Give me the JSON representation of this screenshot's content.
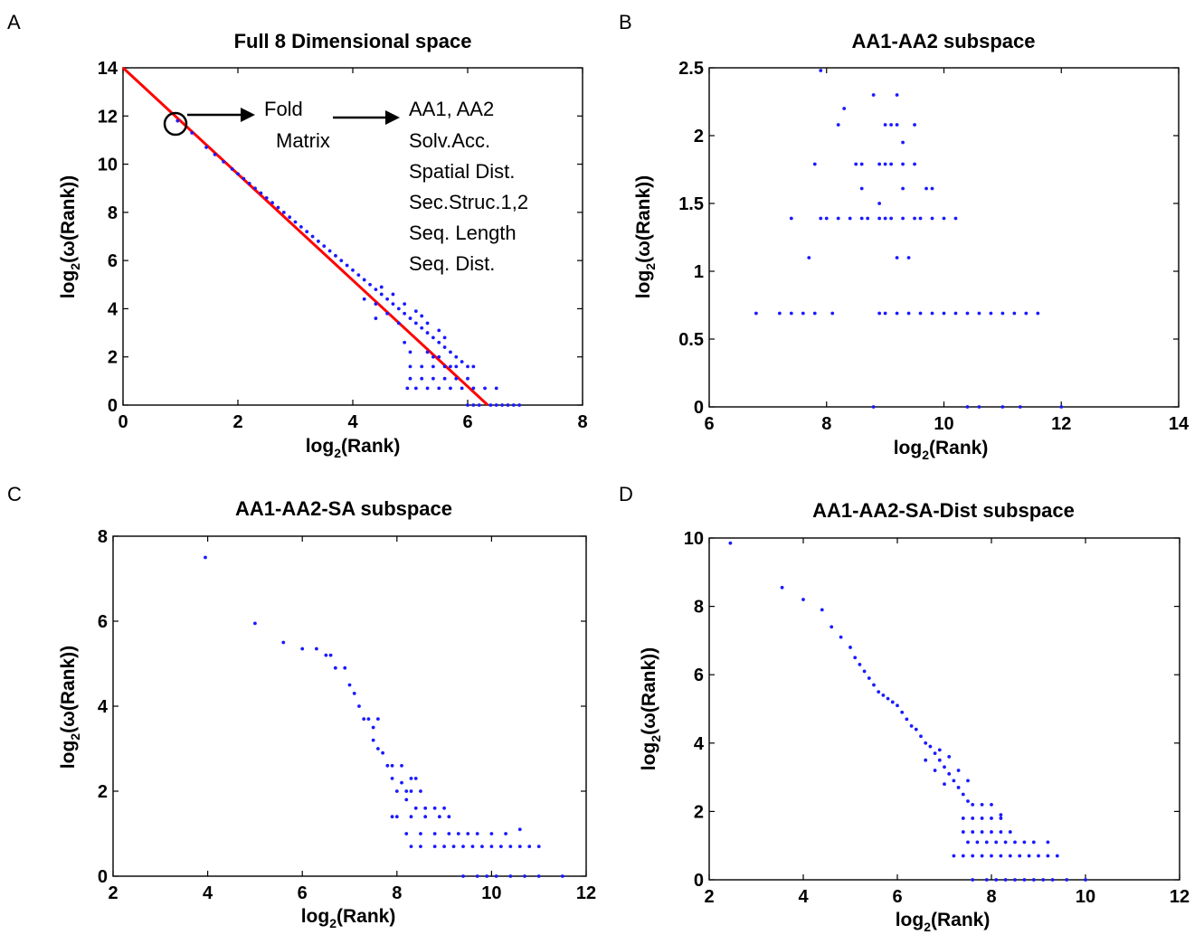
{
  "chart_data": [
    {
      "panel": "A",
      "type": "scatter",
      "title": "Full 8 Dimensional space",
      "xlabel": "log2(Rank)",
      "ylabel": "log2(ω(Rank))",
      "xlim": [
        0,
        8
      ],
      "ylim": [
        0,
        14
      ],
      "xticks": [
        0,
        2,
        4,
        6,
        8
      ],
      "yticks": [
        0,
        2,
        4,
        6,
        8,
        10,
        12,
        14
      ],
      "color": "#1a1aff",
      "fit_line": {
        "color": "#ff0000",
        "x": [
          0,
          6.35
        ],
        "y": [
          14,
          0
        ]
      },
      "annotation": {
        "box1": [
          "Fold",
          "Matrix"
        ],
        "box2": [
          "AA1, AA2",
          "Solv.Acc.",
          "Spatial Dist.",
          "Sec.Struc.1,2",
          "Seq. Length",
          "Seq. Dist."
        ],
        "circled_point": {
          "x": 0.9,
          "y": 11.8
        }
      },
      "points": [
        [
          0.95,
          11.8
        ],
        [
          1.2,
          11.3
        ],
        [
          1.45,
          10.7
        ],
        [
          1.6,
          10.4
        ],
        [
          1.75,
          10.1
        ],
        [
          1.9,
          9.8
        ],
        [
          2.0,
          9.6
        ],
        [
          2.1,
          9.4
        ],
        [
          2.2,
          9.2
        ],
        [
          2.3,
          9.0
        ],
        [
          2.4,
          8.8
        ],
        [
          2.5,
          8.6
        ],
        [
          2.6,
          8.4
        ],
        [
          2.7,
          8.2
        ],
        [
          2.8,
          8.0
        ],
        [
          2.9,
          7.8
        ],
        [
          3.0,
          7.6
        ],
        [
          3.1,
          7.4
        ],
        [
          3.2,
          7.2
        ],
        [
          3.3,
          7.0
        ],
        [
          3.4,
          6.8
        ],
        [
          3.5,
          6.6
        ],
        [
          3.6,
          6.4
        ],
        [
          3.7,
          6.2
        ],
        [
          3.8,
          6.0
        ],
        [
          3.9,
          5.8
        ],
        [
          4.0,
          5.6
        ],
        [
          4.1,
          5.4
        ],
        [
          4.2,
          5.2
        ],
        [
          4.3,
          5.0
        ],
        [
          4.4,
          4.8
        ],
        [
          4.5,
          4.6
        ],
        [
          4.6,
          4.4
        ],
        [
          4.7,
          4.2
        ],
        [
          4.8,
          4.0
        ],
        [
          4.9,
          3.8
        ],
        [
          5.0,
          3.6
        ],
        [
          5.1,
          3.4
        ],
        [
          5.2,
          3.2
        ],
        [
          5.3,
          3.0
        ],
        [
          5.4,
          2.8
        ],
        [
          5.5,
          2.6
        ],
        [
          5.6,
          2.4
        ],
        [
          5.7,
          2.2
        ],
        [
          5.8,
          2.0
        ],
        [
          5.9,
          1.8
        ],
        [
          4.5,
          4.9
        ],
        [
          4.7,
          4.6
        ],
        [
          4.9,
          4.2
        ],
        [
          5.1,
          3.9
        ],
        [
          5.2,
          3.7
        ],
        [
          5.3,
          3.4
        ],
        [
          5.5,
          3.1
        ],
        [
          5.6,
          2.8
        ],
        [
          5.3,
          2.2
        ],
        [
          5.4,
          2.0
        ],
        [
          5.5,
          2.0
        ],
        [
          5.6,
          1.6
        ],
        [
          5.7,
          1.6
        ],
        [
          5.8,
          1.6
        ],
        [
          6.0,
          1.6
        ],
        [
          6.1,
          1.6
        ],
        [
          5.0,
          1.6
        ],
        [
          5.2,
          1.6
        ],
        [
          5.4,
          1.6
        ],
        [
          5.2,
          1.1
        ],
        [
          5.4,
          1.1
        ],
        [
          5.6,
          1.1
        ],
        [
          5.8,
          1.1
        ],
        [
          6.0,
          1.1
        ],
        [
          5.1,
          0.7
        ],
        [
          5.3,
          0.7
        ],
        [
          5.5,
          0.7
        ],
        [
          5.7,
          0.7
        ],
        [
          5.9,
          0.7
        ],
        [
          6.1,
          0.7
        ],
        [
          6.3,
          0.7
        ],
        [
          6.5,
          0.7
        ],
        [
          4.95,
          0.7
        ],
        [
          5.0,
          1.1
        ],
        [
          5.0,
          2.2
        ],
        [
          4.9,
          2.6
        ],
        [
          6.4,
          0
        ],
        [
          6.5,
          0
        ],
        [
          6.6,
          0
        ],
        [
          6.7,
          0
        ],
        [
          6.8,
          0
        ],
        [
          6.9,
          0
        ],
        [
          6.0,
          0
        ],
        [
          6.1,
          0
        ],
        [
          6.2,
          0
        ],
        [
          4.4,
          4.2
        ],
        [
          4.6,
          3.8
        ],
        [
          4.8,
          3.4
        ],
        [
          4.4,
          3.6
        ],
        [
          4.2,
          4.4
        ]
      ]
    },
    {
      "panel": "B",
      "type": "scatter",
      "title": "AA1-AA2 subspace",
      "xlabel": "log2(Rank)",
      "ylabel": "log2(ω(Rank))",
      "xlim": [
        6,
        14
      ],
      "ylim": [
        0,
        2.5
      ],
      "xticks": [
        6,
        8,
        10,
        12,
        14
      ],
      "yticks": [
        0,
        0.5,
        1,
        1.5,
        2,
        2.5
      ],
      "color": "#1a1aff",
      "points": [
        [
          7.9,
          2.48
        ],
        [
          8.3,
          2.2
        ],
        [
          8.8,
          2.3
        ],
        [
          9.2,
          2.3
        ],
        [
          8.2,
          2.08
        ],
        [
          9.0,
          2.08
        ],
        [
          9.1,
          2.08
        ],
        [
          9.2,
          2.08
        ],
        [
          9.5,
          2.08
        ],
        [
          9.3,
          1.95
        ],
        [
          7.8,
          1.79
        ],
        [
          8.5,
          1.79
        ],
        [
          8.6,
          1.79
        ],
        [
          8.9,
          1.79
        ],
        [
          9.0,
          1.79
        ],
        [
          9.1,
          1.79
        ],
        [
          9.3,
          1.79
        ],
        [
          9.5,
          1.79
        ],
        [
          8.6,
          1.61
        ],
        [
          9.3,
          1.61
        ],
        [
          9.7,
          1.61
        ],
        [
          9.8,
          1.61
        ],
        [
          8.9,
          1.5
        ],
        [
          7.4,
          1.39
        ],
        [
          7.9,
          1.39
        ],
        [
          8.0,
          1.39
        ],
        [
          8.2,
          1.39
        ],
        [
          8.4,
          1.39
        ],
        [
          8.6,
          1.39
        ],
        [
          8.7,
          1.39
        ],
        [
          8.9,
          1.39
        ],
        [
          9.0,
          1.39
        ],
        [
          9.1,
          1.39
        ],
        [
          9.3,
          1.39
        ],
        [
          9.5,
          1.39
        ],
        [
          9.6,
          1.39
        ],
        [
          9.8,
          1.39
        ],
        [
          10.0,
          1.39
        ],
        [
          10.2,
          1.39
        ],
        [
          7.7,
          1.1
        ],
        [
          9.2,
          1.1
        ],
        [
          9.4,
          1.1
        ],
        [
          6.8,
          0.69
        ],
        [
          7.2,
          0.69
        ],
        [
          7.4,
          0.69
        ],
        [
          7.6,
          0.69
        ],
        [
          7.8,
          0.69
        ],
        [
          8.1,
          0.69
        ],
        [
          8.9,
          0.69
        ],
        [
          9.0,
          0.69
        ],
        [
          9.2,
          0.69
        ],
        [
          9.4,
          0.69
        ],
        [
          9.6,
          0.69
        ],
        [
          9.8,
          0.69
        ],
        [
          10.0,
          0.69
        ],
        [
          10.2,
          0.69
        ],
        [
          10.4,
          0.69
        ],
        [
          10.6,
          0.69
        ],
        [
          10.8,
          0.69
        ],
        [
          11.0,
          0.69
        ],
        [
          11.2,
          0.69
        ],
        [
          11.4,
          0.69
        ],
        [
          11.6,
          0.69
        ],
        [
          8.8,
          0
        ],
        [
          10.4,
          0
        ],
        [
          10.6,
          0
        ],
        [
          11.0,
          0
        ],
        [
          11.3,
          0
        ],
        [
          12.0,
          0
        ]
      ]
    },
    {
      "panel": "C",
      "type": "scatter",
      "title": "AA1-AA2-SA subspace",
      "xlabel": "log2(Rank)",
      "ylabel": "log2(ω(Rank))",
      "xlim": [
        2,
        12
      ],
      "ylim": [
        0,
        8
      ],
      "xticks": [
        2,
        4,
        6,
        8,
        10,
        12
      ],
      "yticks": [
        0,
        2,
        4,
        6,
        8
      ],
      "color": "#1a1aff",
      "points": [
        [
          3.95,
          7.5
        ],
        [
          5.0,
          5.95
        ],
        [
          5.6,
          5.5
        ],
        [
          6.0,
          5.35
        ],
        [
          6.3,
          5.35
        ],
        [
          6.5,
          5.2
        ],
        [
          6.6,
          5.2
        ],
        [
          6.7,
          4.9
        ],
        [
          6.9,
          4.9
        ],
        [
          7.0,
          4.5
        ],
        [
          7.1,
          4.3
        ],
        [
          7.2,
          4.0
        ],
        [
          7.3,
          3.7
        ],
        [
          7.4,
          3.7
        ],
        [
          7.5,
          3.5
        ],
        [
          7.6,
          3.7
        ],
        [
          7.5,
          3.2
        ],
        [
          7.6,
          3.0
        ],
        [
          7.7,
          2.9
        ],
        [
          7.8,
          2.6
        ],
        [
          7.9,
          2.6
        ],
        [
          7.9,
          2.3
        ],
        [
          8.0,
          2.0
        ],
        [
          8.1,
          2.2
        ],
        [
          8.2,
          2.0
        ],
        [
          8.3,
          2.3
        ],
        [
          8.4,
          2.3
        ],
        [
          8.1,
          2.6
        ],
        [
          8.3,
          2.0
        ],
        [
          8.5,
          2.0
        ],
        [
          8.2,
          1.8
        ],
        [
          8.4,
          1.6
        ],
        [
          8.6,
          1.6
        ],
        [
          8.8,
          1.6
        ],
        [
          9.0,
          1.6
        ],
        [
          8.0,
          1.4
        ],
        [
          8.3,
          1.4
        ],
        [
          8.6,
          1.4
        ],
        [
          8.9,
          1.4
        ],
        [
          9.1,
          1.4
        ],
        [
          7.9,
          1.4
        ],
        [
          8.2,
          1.0
        ],
        [
          8.5,
          1.0
        ],
        [
          8.8,
          1.0
        ],
        [
          9.1,
          1.0
        ],
        [
          9.3,
          1.0
        ],
        [
          9.5,
          1.0
        ],
        [
          9.7,
          1.0
        ],
        [
          10.0,
          1.0
        ],
        [
          10.3,
          1.0
        ],
        [
          10.6,
          1.1
        ],
        [
          8.3,
          0.7
        ],
        [
          8.5,
          0.7
        ],
        [
          8.8,
          0.7
        ],
        [
          9.0,
          0.7
        ],
        [
          9.2,
          0.7
        ],
        [
          9.4,
          0.7
        ],
        [
          9.6,
          0.7
        ],
        [
          9.8,
          0.7
        ],
        [
          10.0,
          0.7
        ],
        [
          10.2,
          0.7
        ],
        [
          10.4,
          0.7
        ],
        [
          10.6,
          0.7
        ],
        [
          10.8,
          0.7
        ],
        [
          11.0,
          0.7
        ],
        [
          9.4,
          0
        ],
        [
          9.7,
          0
        ],
        [
          9.9,
          0
        ],
        [
          10.1,
          0
        ],
        [
          10.4,
          0
        ],
        [
          10.7,
          0
        ],
        [
          11.0,
          0
        ],
        [
          11.5,
          0
        ]
      ]
    },
    {
      "panel": "D",
      "type": "scatter",
      "title": "AA1-AA2-SA-Dist subspace",
      "xlabel": "log2(Rank)",
      "ylabel": "log2(ω(Rank))",
      "xlim": [
        2,
        12
      ],
      "ylim": [
        0,
        10
      ],
      "xticks": [
        2,
        4,
        6,
        8,
        10,
        12
      ],
      "yticks": [
        0,
        2,
        4,
        6,
        8,
        10
      ],
      "color": "#1a1aff",
      "points": [
        [
          2.45,
          9.85
        ],
        [
          3.55,
          8.55
        ],
        [
          4.0,
          8.2
        ],
        [
          4.4,
          7.9
        ],
        [
          4.6,
          7.4
        ],
        [
          4.8,
          7.1
        ],
        [
          5.0,
          6.8
        ],
        [
          5.1,
          6.5
        ],
        [
          5.2,
          6.3
        ],
        [
          5.3,
          6.1
        ],
        [
          5.4,
          5.9
        ],
        [
          5.5,
          5.7
        ],
        [
          5.6,
          5.5
        ],
        [
          5.7,
          5.4
        ],
        [
          5.8,
          5.3
        ],
        [
          5.9,
          5.2
        ],
        [
          6.0,
          5.1
        ],
        [
          6.1,
          4.9
        ],
        [
          6.2,
          4.7
        ],
        [
          6.3,
          4.5
        ],
        [
          6.4,
          4.4
        ],
        [
          6.5,
          4.2
        ],
        [
          6.6,
          4.0
        ],
        [
          6.7,
          3.9
        ],
        [
          6.8,
          3.7
        ],
        [
          6.9,
          3.5
        ],
        [
          7.0,
          3.3
        ],
        [
          7.1,
          3.1
        ],
        [
          7.2,
          2.9
        ],
        [
          7.3,
          2.7
        ],
        [
          7.4,
          2.5
        ],
        [
          7.5,
          2.3
        ],
        [
          6.9,
          3.8
        ],
        [
          7.1,
          3.6
        ],
        [
          7.3,
          3.2
        ],
        [
          7.5,
          2.9
        ],
        [
          6.6,
          3.5
        ],
        [
          6.8,
          3.2
        ],
        [
          7.0,
          2.8
        ],
        [
          7.6,
          2.2
        ],
        [
          7.8,
          2.2
        ],
        [
          8.0,
          2.2
        ],
        [
          8.2,
          1.9
        ],
        [
          7.4,
          1.8
        ],
        [
          7.6,
          1.8
        ],
        [
          7.8,
          1.8
        ],
        [
          8.0,
          1.8
        ],
        [
          8.2,
          1.8
        ],
        [
          7.4,
          1.4
        ],
        [
          7.6,
          1.4
        ],
        [
          7.8,
          1.4
        ],
        [
          8.0,
          1.4
        ],
        [
          8.2,
          1.4
        ],
        [
          8.4,
          1.4
        ],
        [
          7.5,
          1.1
        ],
        [
          7.7,
          1.1
        ],
        [
          7.9,
          1.1
        ],
        [
          8.1,
          1.1
        ],
        [
          8.3,
          1.1
        ],
        [
          8.5,
          1.1
        ],
        [
          8.7,
          1.1
        ],
        [
          8.9,
          1.1
        ],
        [
          9.2,
          1.1
        ],
        [
          7.6,
          0.7
        ],
        [
          7.8,
          0.7
        ],
        [
          8.0,
          0.7
        ],
        [
          8.2,
          0.7
        ],
        [
          8.4,
          0.7
        ],
        [
          8.6,
          0.7
        ],
        [
          8.8,
          0.7
        ],
        [
          9.0,
          0.7
        ],
        [
          9.2,
          0.7
        ],
        [
          9.4,
          0.7
        ],
        [
          7.2,
          0.7
        ],
        [
          7.4,
          0.7
        ],
        [
          7.6,
          0
        ],
        [
          7.9,
          0
        ],
        [
          8.1,
          0
        ],
        [
          8.3,
          0
        ],
        [
          8.5,
          0
        ],
        [
          8.7,
          0
        ],
        [
          8.9,
          0
        ],
        [
          9.1,
          0
        ],
        [
          9.3,
          0
        ],
        [
          9.6,
          0
        ],
        [
          10.0,
          0
        ]
      ]
    }
  ]
}
